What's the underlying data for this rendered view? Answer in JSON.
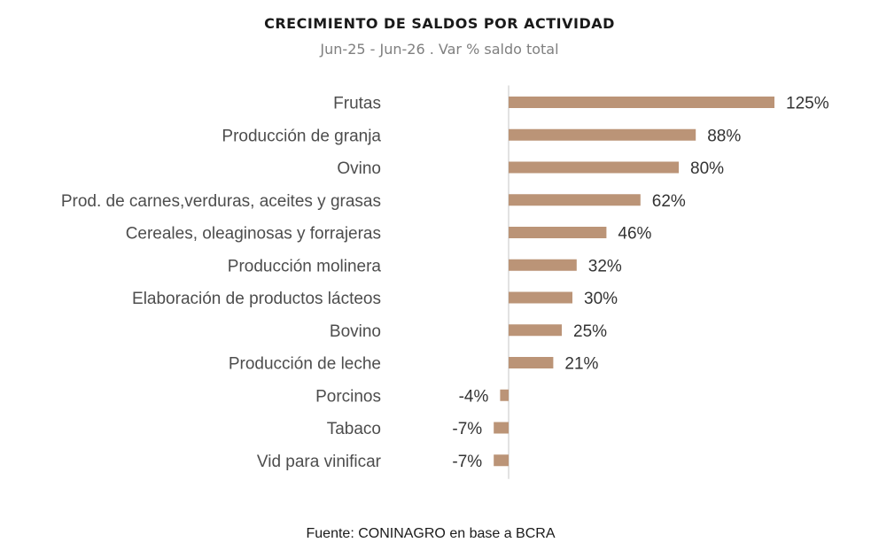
{
  "chart_data": {
    "type": "bar",
    "orientation": "horizontal",
    "title": "CRECIMIENTO DE SALDOS POR ACTIVIDAD",
    "subtitle": "Jun-25 - Jun-26 . Var % saldo total",
    "categories": [
      "Frutas",
      "Producción de granja",
      "Ovino",
      "Prod. de carnes,verduras, aceites y grasas",
      "Cereales, oleaginosas y forrajeras",
      "Producción molinera",
      "Elaboración de productos lácteos",
      "Bovino",
      "Producción de leche",
      "Porcinos",
      "Tabaco",
      "Vid para vinificar"
    ],
    "values": [
      125,
      88,
      80,
      62,
      46,
      32,
      30,
      25,
      21,
      -4,
      -7,
      -7
    ],
    "value_labels": [
      "125%",
      "88%",
      "80%",
      "62%",
      "46%",
      "32%",
      "30%",
      "25%",
      "21%",
      "-4%",
      "-7%",
      "-7%"
    ],
    "unit": "%",
    "bar_color": "#bb9477",
    "axis_color": "#d9d9d9",
    "grid": false,
    "legend": "none"
  },
  "source": "Fuente: CONINAGRO en base a BCRA"
}
